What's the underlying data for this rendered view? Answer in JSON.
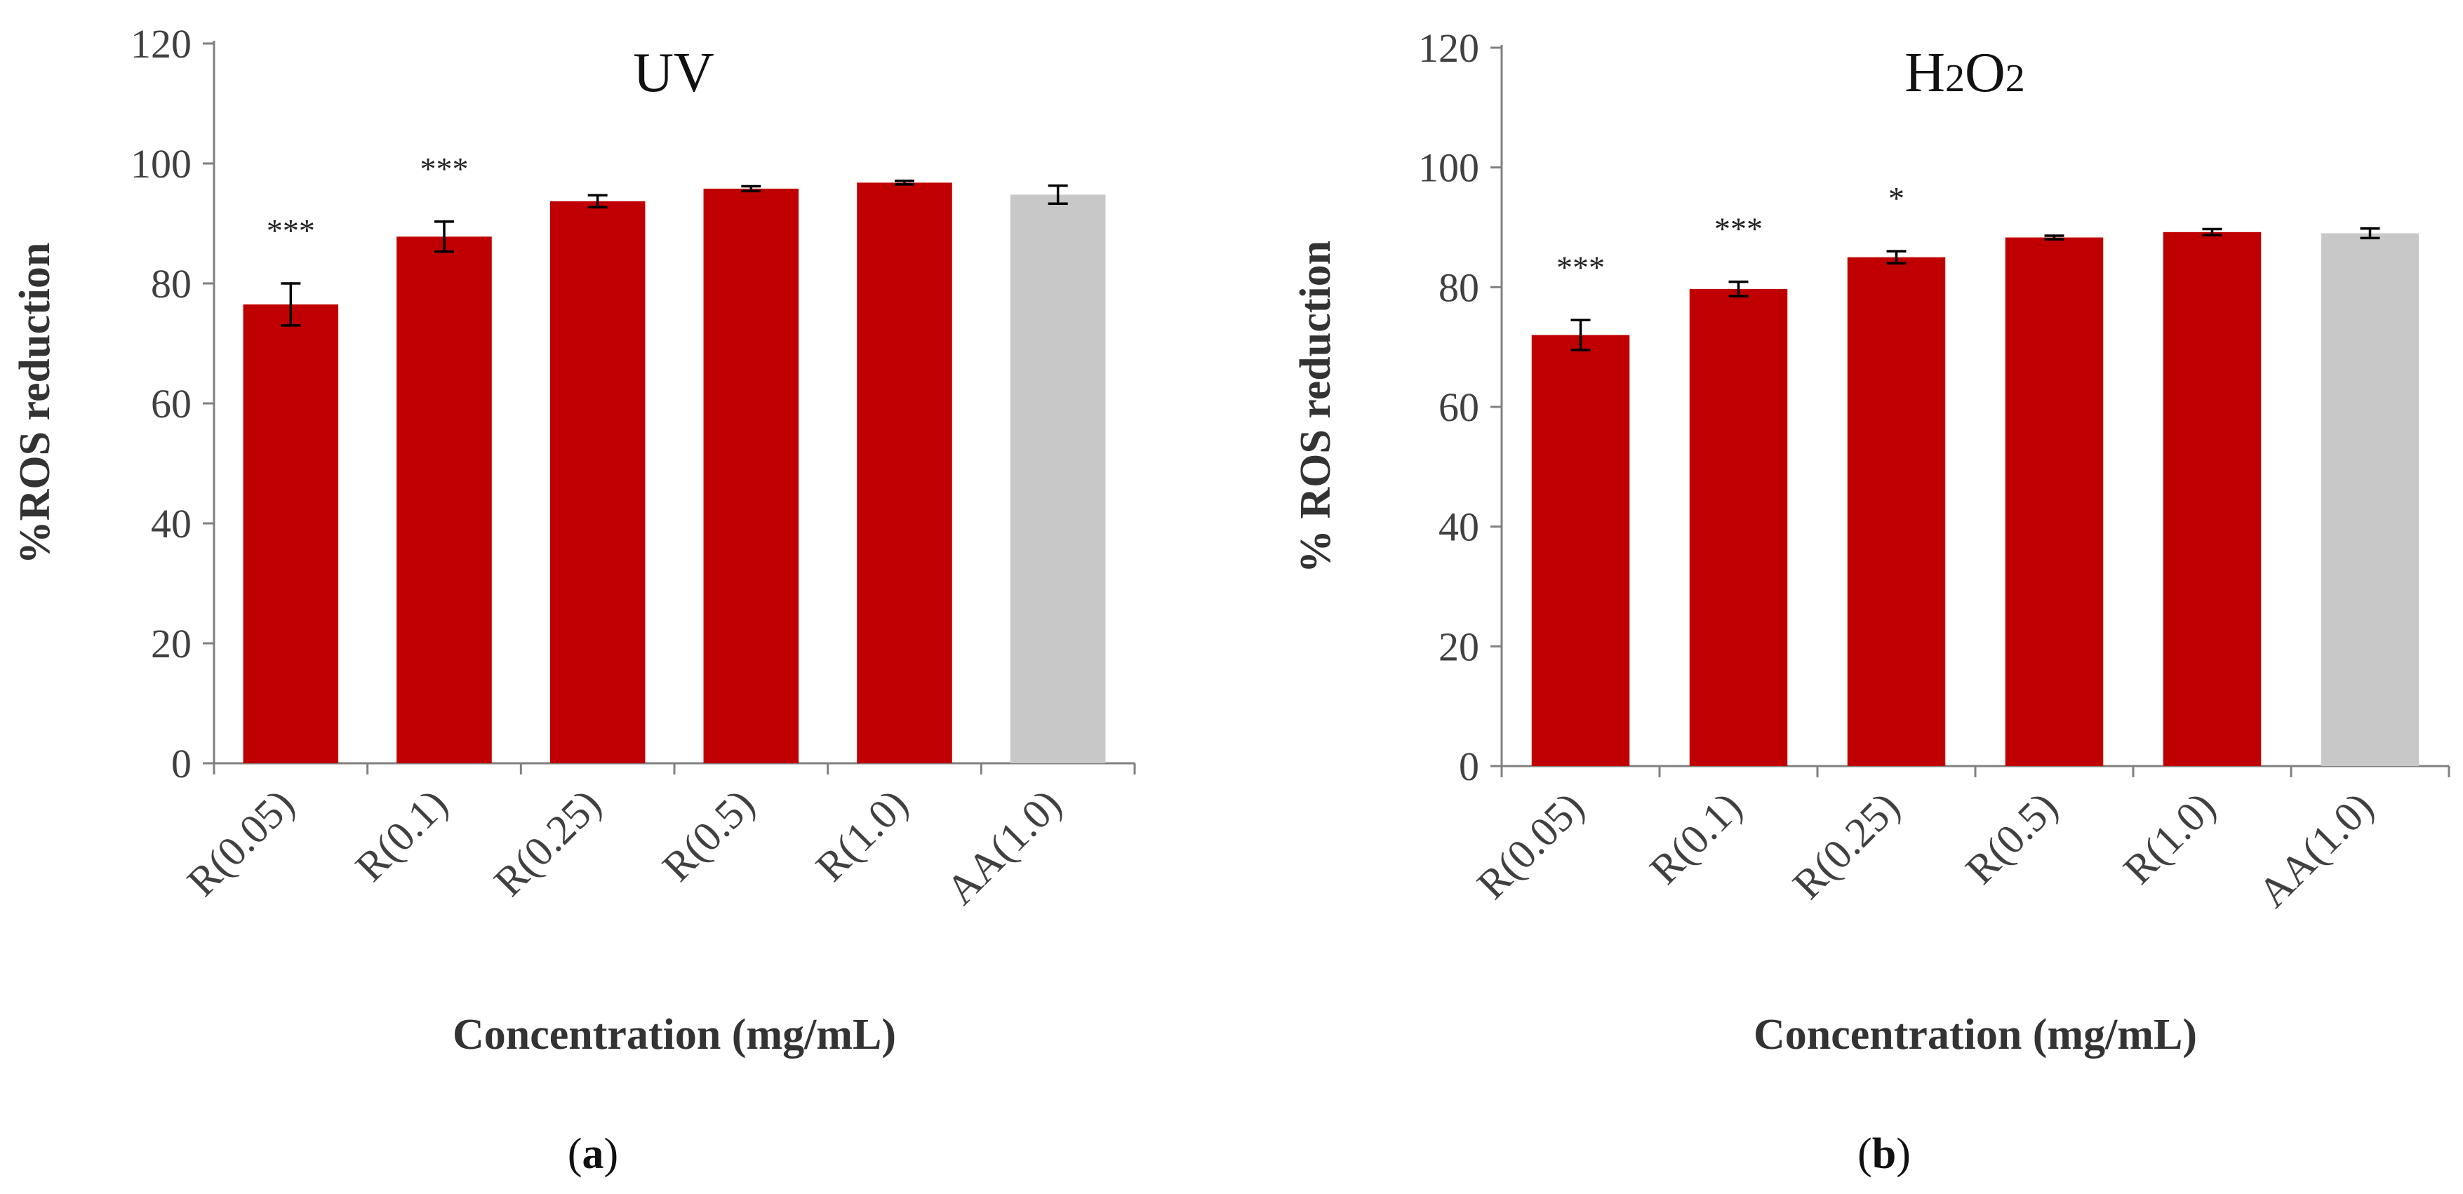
{
  "chart_data": [
    {
      "type": "bar",
      "panel_label": "a",
      "title": "UV",
      "xlabel": "Concentration (mg/mL)",
      "ylabel": "%ROS reduction",
      "ylim": [
        0,
        120
      ],
      "yticks": [
        0,
        20,
        40,
        60,
        80,
        100,
        120
      ],
      "grid": false,
      "categories": [
        "R(0.05)",
        "R(0.1)",
        "R(0.25)",
        "R(0.5)",
        "R(1.0)",
        "AA(1.0)"
      ],
      "values": [
        76.5,
        87.8,
        93.7,
        95.8,
        96.8,
        94.8
      ],
      "errors": [
        3.5,
        2.5,
        1.0,
        0.4,
        0.3,
        1.5
      ],
      "significance": [
        "***",
        "***",
        "",
        "",
        "",
        ""
      ],
      "colors": [
        "#c00000",
        "#c00000",
        "#c00000",
        "#c00000",
        "#c00000",
        "#c8c8c8"
      ]
    },
    {
      "type": "bar",
      "panel_label": "b",
      "title": "H2O2",
      "title_parts": [
        "H",
        "2",
        "O",
        "2"
      ],
      "xlabel": "Concentration (mg/mL)",
      "ylabel": "% ROS reduction",
      "ylim": [
        0,
        120
      ],
      "yticks": [
        0,
        20,
        40,
        60,
        80,
        100,
        120
      ],
      "grid": false,
      "categories": [
        "R(0.05)",
        "R(0.1)",
        "R(0.25)",
        "R(0.5)",
        "R(1.0)",
        "AA(1.0)"
      ],
      "values": [
        72.0,
        79.7,
        85.0,
        88.3,
        89.2,
        89.0
      ],
      "errors": [
        2.5,
        1.2,
        1.0,
        0.3,
        0.5,
        0.8
      ],
      "significance": [
        "***",
        "***",
        "*",
        "",
        "",
        ""
      ],
      "colors": [
        "#c00000",
        "#c00000",
        "#c00000",
        "#c00000",
        "#c00000",
        "#c8c8c8"
      ]
    }
  ]
}
